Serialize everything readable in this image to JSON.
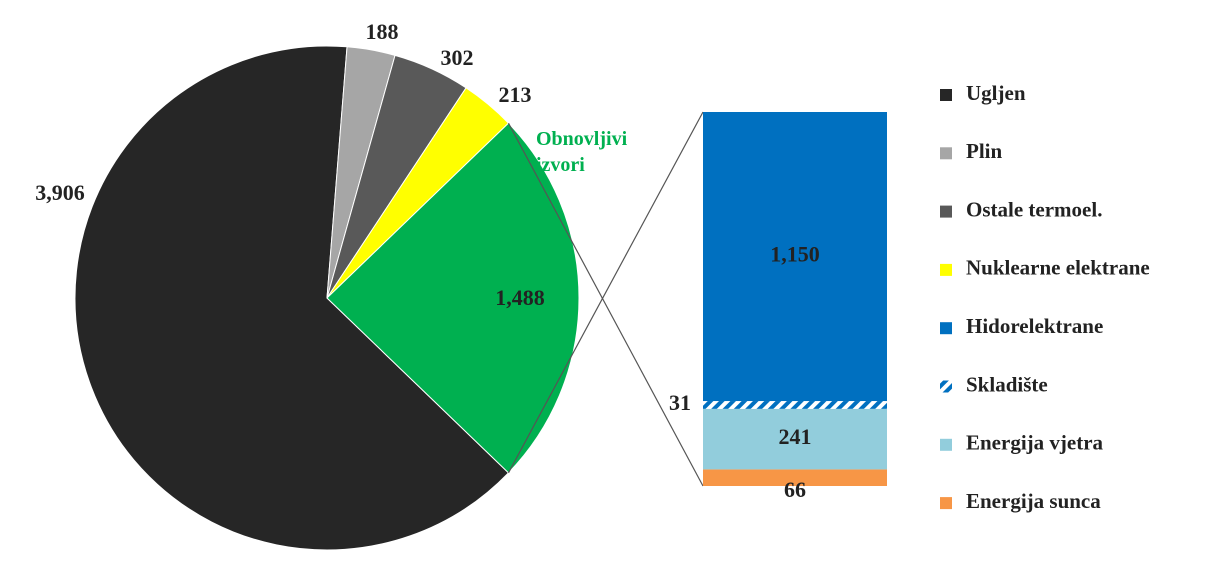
{
  "chart_data": {
    "type": "pie",
    "categories": [
      "Ugljen",
      "Plin",
      "Ostale termoel.",
      "Nuklearne elektrane",
      "Obnovljivi izvori"
    ],
    "values": [
      3906,
      188,
      302,
      213,
      1488
    ],
    "value_labels": [
      "3,906",
      "188",
      "302",
      "213",
      "1,488"
    ],
    "colors": [
      "#262626",
      "#a6a6a6",
      "#595959",
      "#ffff00",
      "#00b050"
    ],
    "breakdown": {
      "categories": [
        "Hidorelektrane",
        "Skladište",
        "Energija vjetra",
        "Energija sunca"
      ],
      "values": [
        1150,
        31,
        241,
        66
      ],
      "value_labels": [
        "1,150",
        "31",
        "241",
        "66"
      ],
      "colors": [
        "#0070c0",
        "#0070c0",
        "#92cddc",
        "#f79646"
      ],
      "patterns": [
        null,
        "hatch",
        null,
        null
      ]
    }
  }
}
